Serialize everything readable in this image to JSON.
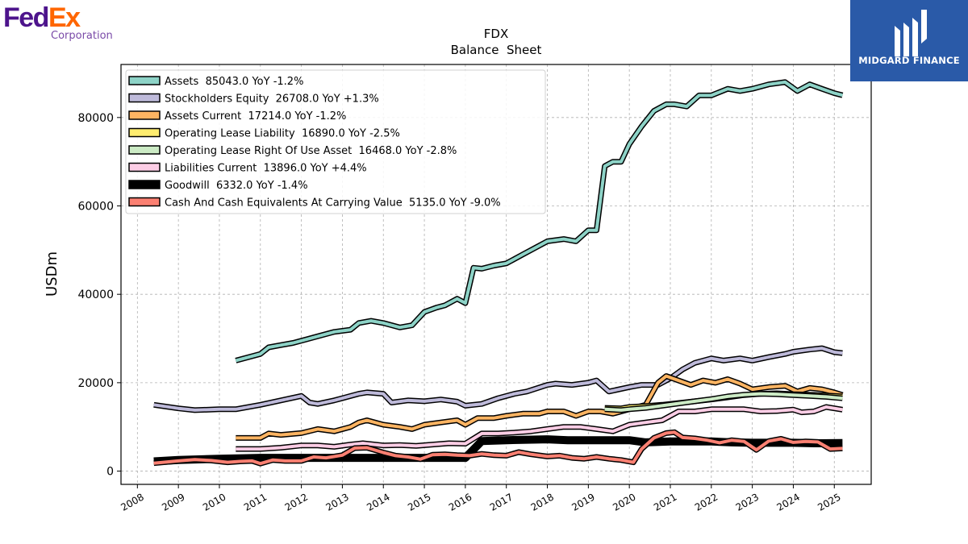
{
  "brand": {
    "fedex_part1": "Fed",
    "fedex_part2": "Ex",
    "fedex_sub": "Corporation",
    "fedex_purple": "#4d148c",
    "fedex_orange": "#ff6600",
    "midgard_text": "MIDGARD FINANCE",
    "midgard_bg": "#2a5aa8"
  },
  "chart_data": {
    "type": "line",
    "title": "FDX",
    "subtitle": "Balance  Sheet",
    "ylabel": "USDm",
    "xlabel": "",
    "ylim": [
      -3000,
      92000
    ],
    "xlim": [
      2007.6,
      2025.9
    ],
    "yticks": [
      0,
      20000,
      40000,
      60000,
      80000
    ],
    "xticks": [
      "2008",
      "2009",
      "2010",
      "2011",
      "2012",
      "2013",
      "2014",
      "2015",
      "2016",
      "2017",
      "2018",
      "2019",
      "2020",
      "2021",
      "2022",
      "2023",
      "2024",
      "2025"
    ],
    "grid": true,
    "legend_position": "top-left",
    "series": [
      {
        "name": "Assets  85043.0 YoY -1.2%",
        "color": "#8dd3c7",
        "x": [
          2010.4,
          2011.0,
          2011.2,
          2011.5,
          2011.8,
          2012.0,
          2012.4,
          2012.8,
          2013.2,
          2013.4,
          2013.7,
          2014.0,
          2014.4,
          2014.7,
          2015.0,
          2015.3,
          2015.5,
          2015.8,
          2016.0,
          2016.2,
          2016.4,
          2016.7,
          2017.0,
          2017.4,
          2017.7,
          2018.0,
          2018.4,
          2018.7,
          2019.0,
          2019.2,
          2019.4,
          2019.6,
          2019.8,
          2020.0,
          2020.3,
          2020.6,
          2020.9,
          2021.1,
          2021.4,
          2021.7,
          2022.0,
          2022.4,
          2022.7,
          2023.0,
          2023.4,
          2023.8,
          2024.1,
          2024.4,
          2024.7,
          2025.0,
          2025.2
        ],
        "values": [
          25000,
          26500,
          28000,
          28500,
          29000,
          29500,
          30500,
          31500,
          32000,
          33500,
          34000,
          33500,
          32500,
          33000,
          36000,
          37000,
          37500,
          39000,
          38000,
          46000,
          45800,
          46500,
          47000,
          49000,
          50500,
          52000,
          52500,
          52000,
          54500,
          54500,
          69000,
          70000,
          70000,
          74000,
          78000,
          81500,
          83000,
          83000,
          82500,
          85000,
          85000,
          86500,
          86000,
          86500,
          87500,
          88000,
          86000,
          87500,
          86500,
          85500,
          85043
        ]
      },
      {
        "name": "Stockholders Equity  26708.0 YoY +1.3%",
        "color": "#bebada",
        "x": [
          2008.4,
          2009.0,
          2009.4,
          2010.0,
          2010.4,
          2011.0,
          2011.5,
          2012.0,
          2012.2,
          2012.4,
          2012.8,
          2013.0,
          2013.4,
          2013.6,
          2014.0,
          2014.2,
          2014.6,
          2015.0,
          2015.4,
          2015.8,
          2016.0,
          2016.4,
          2016.8,
          2017.2,
          2017.5,
          2018.0,
          2018.2,
          2018.6,
          2019.0,
          2019.2,
          2019.5,
          2020.0,
          2020.3,
          2020.7,
          2021.0,
          2021.3,
          2021.6,
          2022.0,
          2022.3,
          2022.7,
          2023.0,
          2023.4,
          2023.8,
          2024.0,
          2024.4,
          2024.7,
          2025.0,
          2025.2
        ],
        "values": [
          15000,
          14200,
          13800,
          14000,
          14000,
          15000,
          16000,
          17000,
          15500,
          15200,
          16000,
          16500,
          17500,
          17800,
          17500,
          15500,
          16000,
          15800,
          16200,
          15700,
          14800,
          15200,
          16500,
          17500,
          18000,
          19500,
          19800,
          19500,
          20000,
          20500,
          18000,
          19000,
          19500,
          19500,
          21000,
          23000,
          24500,
          25500,
          25000,
          25500,
          25000,
          25800,
          26500,
          27000,
          27500,
          27800,
          26900,
          26708
        ]
      },
      {
        "name": "Assets Current  17214.0 YoY -1.2%",
        "color": "#fdb462",
        "x": [
          2010.4,
          2011.0,
          2011.2,
          2011.5,
          2012.0,
          2012.4,
          2012.8,
          2013.2,
          2013.4,
          2013.6,
          2014.0,
          2014.4,
          2014.7,
          2015.0,
          2015.4,
          2015.8,
          2016.0,
          2016.3,
          2016.7,
          2017.0,
          2017.4,
          2017.8,
          2018.0,
          2018.4,
          2018.7,
          2019.0,
          2019.3,
          2019.6,
          2020.0,
          2020.4,
          2020.7,
          2020.9,
          2021.2,
          2021.5,
          2021.8,
          2022.1,
          2022.4,
          2022.7,
          2023.0,
          2023.4,
          2023.8,
          2024.1,
          2024.4,
          2024.7,
          2025.0,
          2025.2
        ],
        "values": [
          7500,
          7500,
          8500,
          8200,
          8600,
          9500,
          9000,
          10000,
          11000,
          11500,
          10500,
          10000,
          9500,
          10500,
          11000,
          11500,
          10500,
          12000,
          12000,
          12500,
          13000,
          13000,
          13500,
          13500,
          12500,
          13500,
          13500,
          13000,
          14000,
          15000,
          20000,
          21500,
          20500,
          19500,
          20500,
          20000,
          20800,
          19800,
          18500,
          19000,
          19300,
          18000,
          18800,
          18500,
          17800,
          17214
        ]
      },
      {
        "name": "Operating Lease Liability  16890.0 YoY -2.5%",
        "color": "#ffed6f",
        "x": [
          2019.4,
          2019.8,
          2020.0,
          2020.4,
          2020.8,
          2021.2,
          2021.6,
          2022.0,
          2022.4,
          2022.8,
          2023.2,
          2023.6,
          2024.0,
          2024.4,
          2024.8,
          2025.2
        ],
        "values": [
          14300,
          14200,
          14500,
          14700,
          15000,
          15400,
          15800,
          16200,
          16700,
          17200,
          17500,
          17600,
          17400,
          17300,
          17100,
          16890
        ]
      },
      {
        "name": "Operating Lease Right Of Use Asset  16468.0 YoY -2.8%",
        "color": "#ccebc5",
        "x": [
          2019.4,
          2019.8,
          2020.0,
          2020.4,
          2020.8,
          2021.2,
          2021.6,
          2022.0,
          2022.4,
          2022.8,
          2023.2,
          2023.6,
          2024.0,
          2024.4,
          2024.8,
          2025.2
        ],
        "values": [
          14000,
          13800,
          14000,
          14300,
          14800,
          15300,
          15800,
          16300,
          16900,
          17300,
          17500,
          17400,
          17200,
          17000,
          16800,
          16468
        ]
      },
      {
        "name": "Liabilities Current  13896.0 YoY +4.4%",
        "color": "#fccde5",
        "x": [
          2010.4,
          2011.0,
          2011.5,
          2012.0,
          2012.4,
          2012.8,
          2013.2,
          2013.5,
          2014.0,
          2014.4,
          2014.8,
          2015.2,
          2015.6,
          2016.0,
          2016.4,
          2016.8,
          2017.2,
          2017.6,
          2018.0,
          2018.4,
          2018.8,
          2019.2,
          2019.6,
          2020.0,
          2020.4,
          2020.8,
          2021.2,
          2021.6,
          2022.0,
          2022.4,
          2022.8,
          2023.2,
          2023.6,
          2024.0,
          2024.2,
          2024.5,
          2024.8,
          2025.2
        ],
        "values": [
          5000,
          5000,
          5300,
          5800,
          5800,
          5500,
          6000,
          6300,
          5800,
          5900,
          5700,
          6000,
          6300,
          6200,
          8500,
          8500,
          8700,
          9000,
          9500,
          10000,
          10000,
          9500,
          9000,
          10500,
          11000,
          11500,
          13500,
          13500,
          14000,
          14000,
          14000,
          13500,
          13600,
          13900,
          13300,
          13500,
          14500,
          13896
        ]
      },
      {
        "name": "Goodwill  6332.0 YoY -1.4%",
        "color": "#000000",
        "x": [
          2008.4,
          2009.0,
          2010.0,
          2011.0,
          2012.0,
          2013.0,
          2013.5,
          2014.0,
          2015.0,
          2016.0,
          2016.4,
          2017.0,
          2018.0,
          2018.5,
          2019.0,
          2020.0,
          2020.4,
          2021.0,
          2021.5,
          2022.0,
          2022.5,
          2023.0,
          2023.5,
          2024.0,
          2024.5,
          2025.2
        ],
        "values": [
          2200,
          2500,
          2800,
          3000,
          3000,
          3000,
          3000,
          3000,
          3000,
          3000,
          6800,
          7000,
          7200,
          7000,
          7000,
          7000,
          6500,
          6700,
          6700,
          6700,
          6500,
          6400,
          6400,
          6400,
          6300,
          6332
        ]
      },
      {
        "name": "Cash And Cash Equivalents At Carrying Value  5135.0 YoY -9.0%",
        "color": "#fb8072",
        "x": [
          2008.4,
          2009.0,
          2009.4,
          2009.8,
          2010.2,
          2010.5,
          2010.8,
          2011.0,
          2011.3,
          2011.6,
          2012.0,
          2012.3,
          2012.6,
          2013.0,
          2013.3,
          2013.6,
          2014.0,
          2014.3,
          2014.6,
          2014.9,
          2015.2,
          2015.5,
          2015.8,
          2016.1,
          2016.4,
          2016.7,
          2017.0,
          2017.3,
          2017.6,
          2018.0,
          2018.3,
          2018.6,
          2018.9,
          2019.2,
          2019.5,
          2019.8,
          2020.1,
          2020.3,
          2020.6,
          2020.9,
          2021.1,
          2021.3,
          2021.6,
          2021.9,
          2022.2,
          2022.5,
          2022.8,
          2023.1,
          2023.4,
          2023.7,
          2024.0,
          2024.3,
          2024.6,
          2024.9,
          2025.2
        ],
        "values": [
          1800,
          2300,
          2600,
          2400,
          2000,
          2200,
          2300,
          1700,
          2500,
          2300,
          2300,
          3200,
          3000,
          3600,
          5200,
          5300,
          4200,
          3500,
          3200,
          2700,
          3700,
          3800,
          3600,
          3500,
          3900,
          3600,
          3500,
          4300,
          3800,
          3300,
          3500,
          3000,
          2800,
          3200,
          2800,
          2500,
          2000,
          5000,
          7500,
          8600,
          8800,
          7600,
          7400,
          7000,
          6400,
          7000,
          6700,
          4800,
          6800,
          7300,
          6500,
          6700,
          6600,
          5000,
          5135
        ]
      }
    ]
  }
}
